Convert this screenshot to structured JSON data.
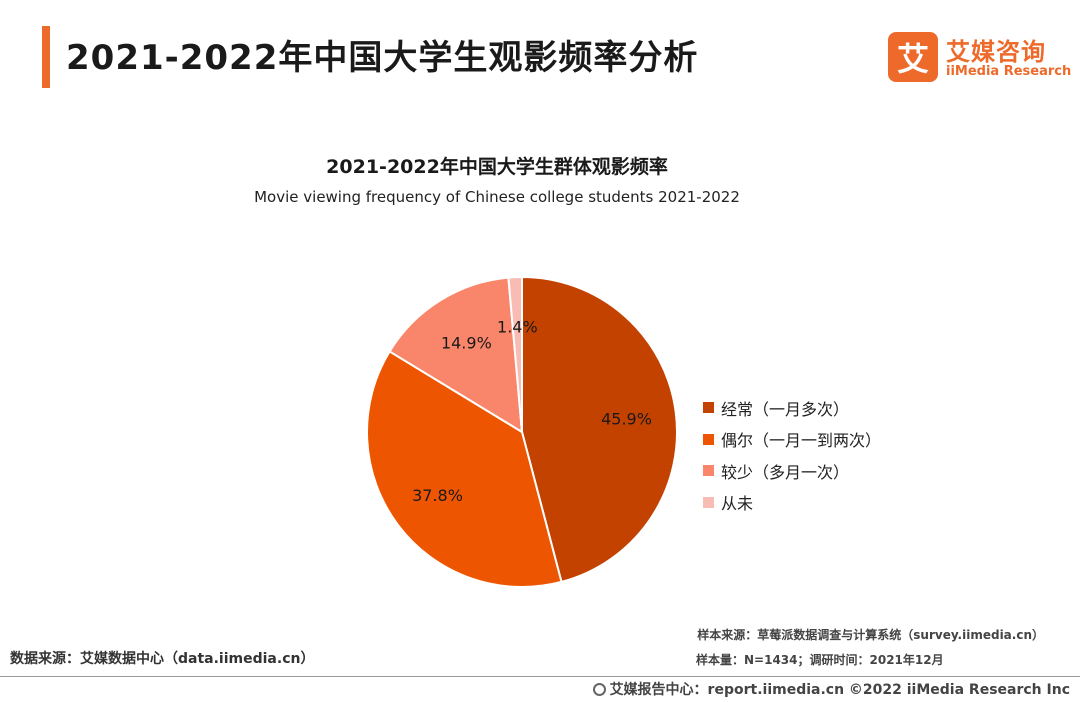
{
  "header": {
    "title": "2021-2022年中国大学生观影频率分析",
    "accent_color": "#ee6a2b"
  },
  "logo": {
    "mark": "艾",
    "name_cn": "艾媒咨询",
    "name_en": "iiMedia Research"
  },
  "chart_data": {
    "type": "pie",
    "title": "2021-2022年中国大学生群体观影频率",
    "subtitle": "Movie viewing frequency of Chinese college students 2021-2022",
    "unit": "%",
    "legend_position": "right",
    "slices": [
      {
        "label": "经常（一月多次）",
        "value": 45.9,
        "display": "45.9%",
        "color": "#c44200"
      },
      {
        "label": "偶尔（一月一到两次）",
        "value": 37.8,
        "display": "37.8%",
        "color": "#ee5500"
      },
      {
        "label": "较少（多月一次）",
        "value": 14.9,
        "display": "14.9%",
        "color": "#f9866a"
      },
      {
        "label": "从未",
        "value": 1.4,
        "display": "1.4%",
        "color": "#f8bcb5"
      }
    ]
  },
  "footer": {
    "data_source": "数据来源：艾媒数据中心（data.iimedia.cn）",
    "sample_source": "样本来源：草莓派数据调查与计算系统（survey.iimedia.cn）",
    "sample_size": "样本量：N=1434；调研时间：2021年12月",
    "copyright": "艾媒报告中心：report.iimedia.cn   ©2022  iiMedia Research  Inc"
  }
}
